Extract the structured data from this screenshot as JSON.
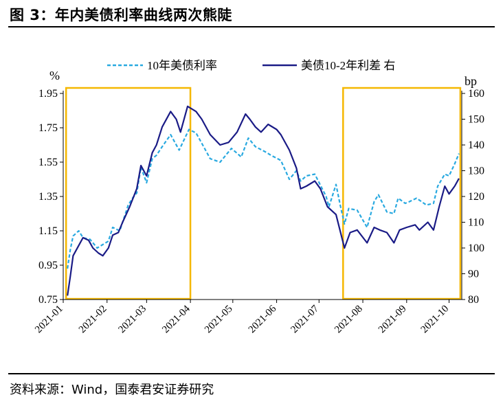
{
  "figure": {
    "title": "图 3：年内美债利率曲线两次熊陡",
    "source": "资料来源：Wind，国泰君安证券研究"
  },
  "chart_data": {
    "type": "line",
    "left_axis": {
      "unit": "%",
      "min": 0.75,
      "max": 1.95,
      "ticks": [
        "1.95",
        "1.75",
        "1.55",
        "1.35",
        "1.15",
        "0.95",
        "0.75"
      ]
    },
    "right_axis": {
      "unit": "bp",
      "min": 80,
      "max": 160,
      "ticks": [
        "160",
        "150",
        "140",
        "130",
        "120",
        "110",
        "100",
        "90",
        "80"
      ]
    },
    "x_axis": {
      "ticks": [
        "2021-01",
        "2021-02",
        "2021-03",
        "2021-04",
        "2021-05",
        "2021-06",
        "2021-07",
        "2021-08",
        "2021-09",
        "2021-10"
      ]
    },
    "legend": {
      "position": "top",
      "items": [
        "10年美债利率",
        "美债10-2年利差 右"
      ]
    },
    "grid": false,
    "series": [
      {
        "name": "10年美债利率",
        "axis": "left",
        "color": "#29A9E0",
        "style": "dashed",
        "points": [
          [
            "2021-01-04",
            0.93
          ],
          [
            "2021-01-06",
            1.04
          ],
          [
            "2021-01-08",
            1.12
          ],
          [
            "2021-01-12",
            1.15
          ],
          [
            "2021-01-15",
            1.11
          ],
          [
            "2021-01-20",
            1.1
          ],
          [
            "2021-01-25",
            1.05
          ],
          [
            "2021-01-29",
            1.07
          ],
          [
            "2021-02-02",
            1.09
          ],
          [
            "2021-02-05",
            1.17
          ],
          [
            "2021-02-10",
            1.15
          ],
          [
            "2021-02-16",
            1.3
          ],
          [
            "2021-02-19",
            1.34
          ],
          [
            "2021-02-22",
            1.37
          ],
          [
            "2021-02-25",
            1.52
          ],
          [
            "2021-03-01",
            1.43
          ],
          [
            "2021-03-05",
            1.57
          ],
          [
            "2021-03-08",
            1.59
          ],
          [
            "2021-03-12",
            1.64
          ],
          [
            "2021-03-18",
            1.71
          ],
          [
            "2021-03-24",
            1.62
          ],
          [
            "2021-03-31",
            1.74
          ],
          [
            "2021-04-05",
            1.72
          ],
          [
            "2021-04-09",
            1.66
          ],
          [
            "2021-04-15",
            1.57
          ],
          [
            "2021-04-22",
            1.55
          ],
          [
            "2021-04-30",
            1.63
          ],
          [
            "2021-05-07",
            1.58
          ],
          [
            "2021-05-12",
            1.69
          ],
          [
            "2021-05-17",
            1.64
          ],
          [
            "2021-05-24",
            1.61
          ],
          [
            "2021-05-28",
            1.59
          ],
          [
            "2021-06-04",
            1.56
          ],
          [
            "2021-06-10",
            1.45
          ],
          [
            "2021-06-15",
            1.5
          ],
          [
            "2021-06-18",
            1.44
          ],
          [
            "2021-06-22",
            1.47
          ],
          [
            "2021-06-28",
            1.48
          ],
          [
            "2021-07-06",
            1.35
          ],
          [
            "2021-07-08",
            1.29
          ],
          [
            "2021-07-13",
            1.42
          ],
          [
            "2021-07-16",
            1.3
          ],
          [
            "2021-07-19",
            1.19
          ],
          [
            "2021-07-22",
            1.28
          ],
          [
            "2021-07-28",
            1.27
          ],
          [
            "2021-08-04",
            1.17
          ],
          [
            "2021-08-09",
            1.32
          ],
          [
            "2021-08-12",
            1.36
          ],
          [
            "2021-08-18",
            1.26
          ],
          [
            "2021-08-23",
            1.25
          ],
          [
            "2021-08-26",
            1.34
          ],
          [
            "2021-08-31",
            1.31
          ],
          [
            "2021-09-03",
            1.32
          ],
          [
            "2021-09-08",
            1.34
          ],
          [
            "2021-09-15",
            1.3
          ],
          [
            "2021-09-20",
            1.31
          ],
          [
            "2021-09-23",
            1.41
          ],
          [
            "2021-09-28",
            1.48
          ],
          [
            "2021-10-01",
            1.47
          ],
          [
            "2021-10-05",
            1.54
          ],
          [
            "2021-10-08",
            1.6
          ]
        ]
      },
      {
        "name": "美债10-2年利差 右",
        "axis": "right",
        "color": "#1A1B86",
        "style": "solid",
        "points": [
          [
            "2021-01-04",
            81.5
          ],
          [
            "2021-01-06",
            89
          ],
          [
            "2021-01-08",
            97
          ],
          [
            "2021-01-12",
            101
          ],
          [
            "2021-01-15",
            104
          ],
          [
            "2021-01-19",
            103
          ],
          [
            "2021-01-22",
            100
          ],
          [
            "2021-01-26",
            98
          ],
          [
            "2021-01-29",
            97
          ],
          [
            "2021-02-02",
            100
          ],
          [
            "2021-02-05",
            105
          ],
          [
            "2021-02-09",
            106
          ],
          [
            "2021-02-12",
            110
          ],
          [
            "2021-02-17",
            116
          ],
          [
            "2021-02-22",
            123
          ],
          [
            "2021-02-25",
            132
          ],
          [
            "2021-03-01",
            128
          ],
          [
            "2021-03-05",
            137
          ],
          [
            "2021-03-08",
            140
          ],
          [
            "2021-03-12",
            147
          ],
          [
            "2021-03-18",
            153
          ],
          [
            "2021-03-22",
            150
          ],
          [
            "2021-03-25",
            145
          ],
          [
            "2021-03-30",
            155
          ],
          [
            "2021-04-05",
            153
          ],
          [
            "2021-04-09",
            150
          ],
          [
            "2021-04-15",
            144
          ],
          [
            "2021-04-22",
            140
          ],
          [
            "2021-04-28",
            141
          ],
          [
            "2021-05-04",
            145
          ],
          [
            "2021-05-10",
            152
          ],
          [
            "2021-05-13",
            150
          ],
          [
            "2021-05-17",
            147
          ],
          [
            "2021-05-21",
            145
          ],
          [
            "2021-05-26",
            148
          ],
          [
            "2021-06-01",
            146
          ],
          [
            "2021-06-04",
            144
          ],
          [
            "2021-06-10",
            138
          ],
          [
            "2021-06-15",
            131
          ],
          [
            "2021-06-18",
            123
          ],
          [
            "2021-06-22",
            124
          ],
          [
            "2021-06-28",
            126
          ],
          [
            "2021-07-02",
            123
          ],
          [
            "2021-07-07",
            116
          ],
          [
            "2021-07-13",
            113
          ],
          [
            "2021-07-19",
            100
          ],
          [
            "2021-07-23",
            106
          ],
          [
            "2021-07-28",
            107
          ],
          [
            "2021-08-04",
            102
          ],
          [
            "2021-08-09",
            108
          ],
          [
            "2021-08-13",
            107
          ],
          [
            "2021-08-18",
            106
          ],
          [
            "2021-08-23",
            102
          ],
          [
            "2021-08-27",
            107
          ],
          [
            "2021-09-01",
            108
          ],
          [
            "2021-09-07",
            109
          ],
          [
            "2021-09-10",
            107
          ],
          [
            "2021-09-16",
            110
          ],
          [
            "2021-09-20",
            107
          ],
          [
            "2021-09-24",
            116
          ],
          [
            "2021-09-28",
            124
          ],
          [
            "2021-10-01",
            121
          ],
          [
            "2021-10-05",
            124
          ],
          [
            "2021-10-08",
            127
          ]
        ]
      }
    ],
    "highlight_boxes": [
      {
        "from": "2021-01-04",
        "to": "2021-03-31",
        "color": "#F5B700"
      },
      {
        "from": "2021-07-19",
        "to": "2021-10-08",
        "color": "#F5B700"
      }
    ]
  }
}
